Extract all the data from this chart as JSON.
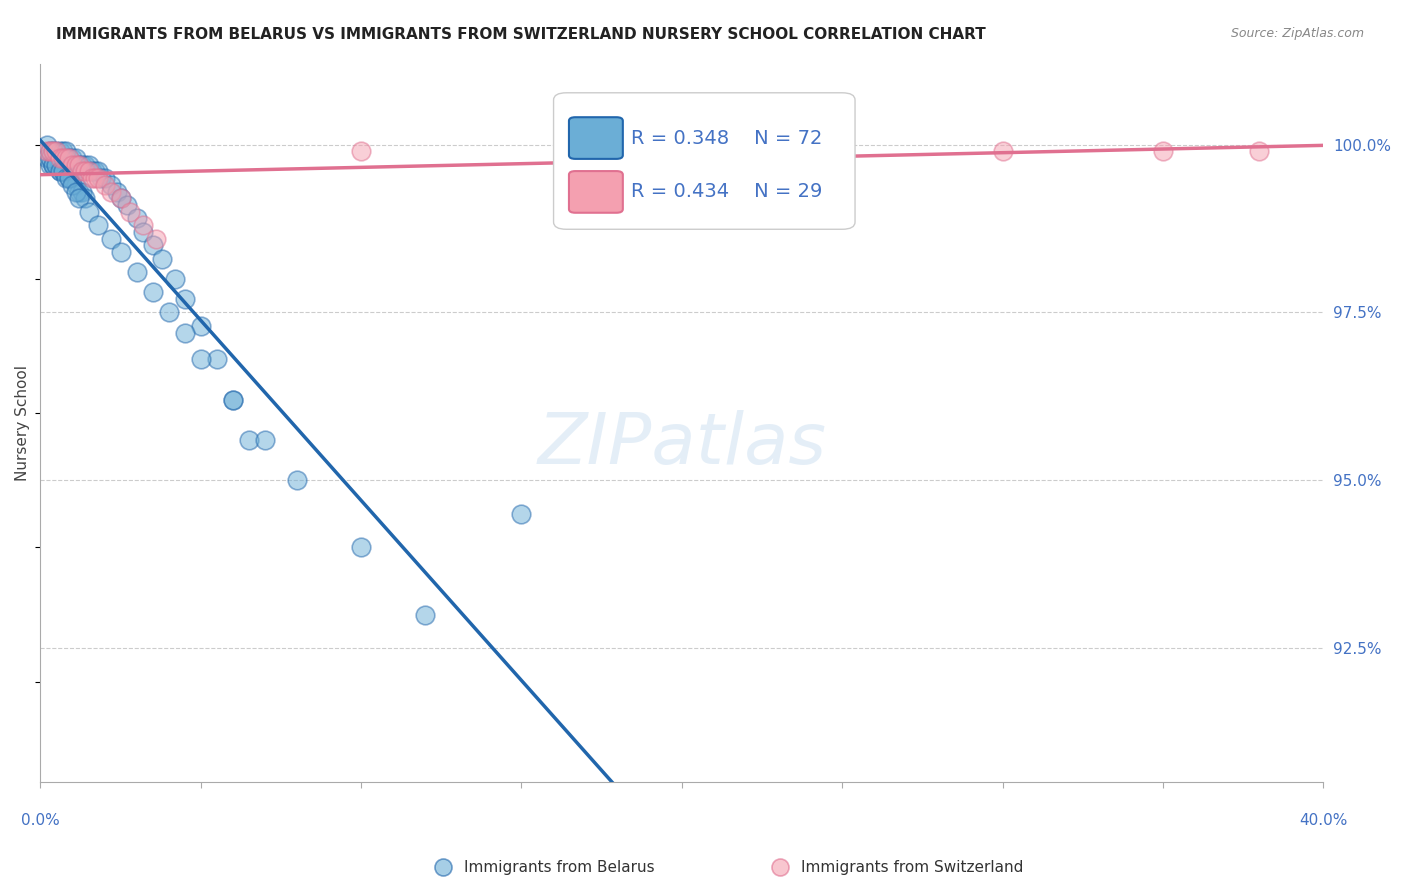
{
  "title": "IMMIGRANTS FROM BELARUS VS IMMIGRANTS FROM SWITZERLAND NURSERY SCHOOL CORRELATION CHART",
  "source": "Source: ZipAtlas.com",
  "ylabel": "Nursery School",
  "ytick_labels": [
    "100.0%",
    "97.5%",
    "95.0%",
    "92.5%"
  ],
  "ytick_values": [
    1.0,
    0.975,
    0.95,
    0.925
  ],
  "xlim": [
    0.0,
    0.4
  ],
  "ylim": [
    0.905,
    1.012
  ],
  "legend_r_belarus": "R = 0.348",
  "legend_n_belarus": "N = 72",
  "legend_r_swiss": "R = 0.434",
  "legend_n_swiss": "N = 29",
  "color_belarus": "#6baed6",
  "color_swiss": "#f4a0b0",
  "color_line_belarus": "#2166ac",
  "color_line_swiss": "#e07090",
  "color_tick_labels": "#4472c4",
  "belarus_x": [
    0.002,
    0.003,
    0.004,
    0.005,
    0.006,
    0.007,
    0.008,
    0.009,
    0.01,
    0.011,
    0.012,
    0.013,
    0.014,
    0.015,
    0.016,
    0.017,
    0.018,
    0.019,
    0.02,
    0.022,
    0.024,
    0.025,
    0.027,
    0.03,
    0.032,
    0.035,
    0.038,
    0.042,
    0.045,
    0.05,
    0.055,
    0.06,
    0.065,
    0.002,
    0.003,
    0.004,
    0.005,
    0.006,
    0.006,
    0.007,
    0.008,
    0.009,
    0.01,
    0.011,
    0.012,
    0.013,
    0.014,
    0.003,
    0.004,
    0.005,
    0.006,
    0.007,
    0.008,
    0.009,
    0.01,
    0.011,
    0.012,
    0.015,
    0.018,
    0.022,
    0.025,
    0.03,
    0.035,
    0.04,
    0.045,
    0.05,
    0.06,
    0.07,
    0.08,
    0.1,
    0.12,
    0.15
  ],
  "belarus_y": [
    1.0,
    0.999,
    0.999,
    0.999,
    0.999,
    0.999,
    0.999,
    0.998,
    0.998,
    0.998,
    0.997,
    0.997,
    0.997,
    0.997,
    0.996,
    0.996,
    0.996,
    0.995,
    0.995,
    0.994,
    0.993,
    0.992,
    0.991,
    0.989,
    0.987,
    0.985,
    0.983,
    0.98,
    0.977,
    0.973,
    0.968,
    0.962,
    0.956,
    0.998,
    0.997,
    0.997,
    0.997,
    0.997,
    0.996,
    0.996,
    0.996,
    0.995,
    0.995,
    0.994,
    0.993,
    0.993,
    0.992,
    0.998,
    0.997,
    0.997,
    0.996,
    0.996,
    0.995,
    0.995,
    0.994,
    0.993,
    0.992,
    0.99,
    0.988,
    0.986,
    0.984,
    0.981,
    0.978,
    0.975,
    0.972,
    0.968,
    0.962,
    0.956,
    0.95,
    0.94,
    0.93,
    0.945
  ],
  "swiss_x": [
    0.002,
    0.003,
    0.004,
    0.005,
    0.006,
    0.007,
    0.008,
    0.009,
    0.01,
    0.011,
    0.012,
    0.013,
    0.014,
    0.015,
    0.016,
    0.017,
    0.018,
    0.02,
    0.022,
    0.025,
    0.028,
    0.032,
    0.036,
    0.1,
    0.2,
    0.25,
    0.3,
    0.35,
    0.38
  ],
  "swiss_y": [
    0.999,
    0.999,
    0.999,
    0.999,
    0.998,
    0.998,
    0.998,
    0.998,
    0.997,
    0.997,
    0.997,
    0.996,
    0.996,
    0.996,
    0.995,
    0.995,
    0.995,
    0.994,
    0.993,
    0.992,
    0.99,
    0.988,
    0.986,
    0.999,
    1.0,
    1.0,
    0.999,
    0.999,
    0.999
  ]
}
